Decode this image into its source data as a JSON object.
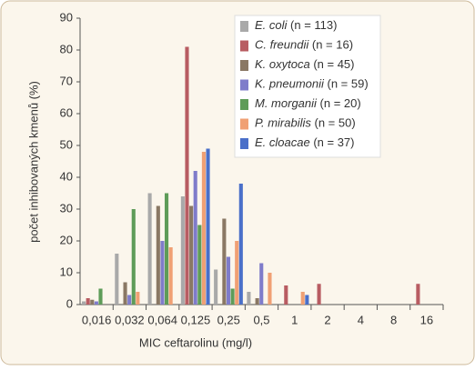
{
  "chart_data": {
    "type": "bar",
    "y_label": "počet inhibovaných kmenů (%)",
    "x_label": "MIC ceftarolinu (mg/l)",
    "categories": [
      "0,016",
      "0,032",
      "0,064",
      "0,125",
      "0,25",
      "0,5",
      "1",
      "2",
      "4",
      "8",
      "16"
    ],
    "ylim": [
      0,
      90
    ],
    "yticks": [
      0,
      10,
      20,
      30,
      40,
      50,
      60,
      70,
      80,
      90
    ],
    "series": [
      {
        "name": "E. coli (n = 113)",
        "color": "#a9a9a9",
        "values": [
          1,
          16,
          35,
          34,
          11,
          4,
          0,
          0,
          0,
          0,
          0
        ]
      },
      {
        "name": "C. freundii (n = 16)",
        "color": "#b85c62",
        "values": [
          2,
          0,
          0,
          81,
          0,
          0,
          6,
          6.5,
          0,
          0,
          6.5
        ]
      },
      {
        "name": "K. oxytoca (n = 45)",
        "color": "#8a7864",
        "values": [
          1.5,
          7,
          31,
          31,
          27,
          2,
          0,
          0,
          0,
          0,
          0
        ]
      },
      {
        "name": "K. pneumonii (n = 59)",
        "color": "#7f7cca",
        "values": [
          1,
          3,
          20,
          42,
          15,
          13,
          0,
          0,
          0,
          0,
          0
        ]
      },
      {
        "name": "M. morganii (n = 20)",
        "color": "#5e9c59",
        "values": [
          5,
          30,
          35,
          25,
          5,
          0,
          0,
          0,
          0,
          0,
          0
        ]
      },
      {
        "name": "P. mirabilis (n = 50)",
        "color": "#f0a074",
        "values": [
          0,
          4,
          18,
          48,
          20,
          10,
          4,
          0,
          0,
          0,
          0
        ]
      },
      {
        "name": "E. cloacae (n = 37)",
        "color": "#4a6fc9",
        "values": [
          0,
          0,
          0,
          49,
          38,
          0,
          3,
          0,
          0,
          0,
          0
        ]
      }
    ]
  }
}
